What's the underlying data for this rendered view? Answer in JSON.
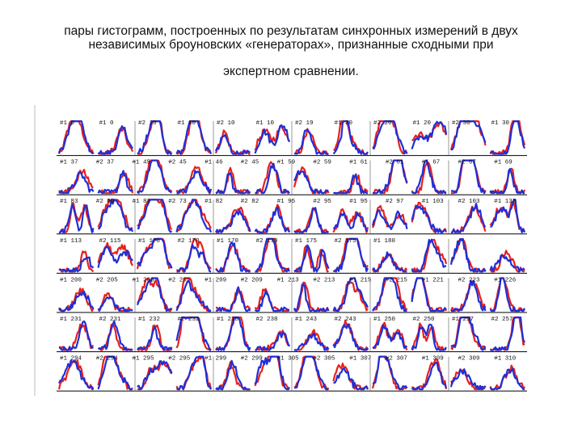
{
  "title": {
    "line1": "пары гистограмм, построенных по результатам синхронных измерений в двух",
    "line2": "независимых броуновских «генераторах», признанные сходными при",
    "line3": "экспертном сравнении."
  },
  "colors": {
    "series_red": "#e8201c",
    "series_blue": "#1f2fd6",
    "axis": "#000000",
    "divider": "#555555"
  },
  "chart_data": {
    "type": "line",
    "layout": "small-multiples grid of histogram pairs",
    "grid": false,
    "series": [
      {
        "color": "#e8201c"
      },
      {
        "color": "#1f2fd6"
      }
    ],
    "rows": [
      [
        "#1 0",
        "#1 0",
        "#2 10",
        "#1 10",
        "#2 10",
        "#1 10",
        "#2 19",
        "#1 20",
        "#2 20",
        "#1 20",
        "#2 30",
        "#1 30"
      ],
      [
        "#1 37",
        "#2 37",
        "#1 45",
        "#2 45",
        "#1 46",
        "#2 45",
        "#1 59",
        "#2 59",
        "#1 61",
        "#2 61",
        "#1 67",
        "#2 67",
        "#1 69"
      ],
      [
        "#1 83",
        "#2 80",
        "#1 83",
        "#2 73",
        "#1 82",
        "#2 82",
        "#1 95",
        "#2 95",
        "#1 95",
        "#2 97",
        "#1 103",
        "#2 103",
        "#1 133"
      ],
      [
        "#1 113",
        "#2 115",
        "#1 170",
        "#2 170",
        "#1 170",
        "#2 170",
        "#1 175",
        "#2 175",
        "#1 180"
      ],
      [
        "#1 200",
        "#2 205",
        "#1 206",
        "#2 205",
        "#1 209",
        "#2 209",
        "#1 213",
        "#2 213",
        "#1 215",
        "#2 215",
        "#1 221",
        "#2 223",
        "#1 226"
      ],
      [
        "#1 231",
        "#2 231",
        "#1 232",
        "#2 232",
        "#1 238",
        "#2 238",
        "#1 243",
        "#2 243",
        "#1 250",
        "#2 250",
        "#1 257",
        "#2 257"
      ],
      [
        "#1 294",
        "#2 294",
        "#1 295",
        "#2 295",
        "#1 299",
        "#2 299",
        "#1 305",
        "#2 305",
        "#1 307",
        "#2 307",
        "#1 309",
        "#2 309",
        "#1 310"
      ]
    ]
  }
}
